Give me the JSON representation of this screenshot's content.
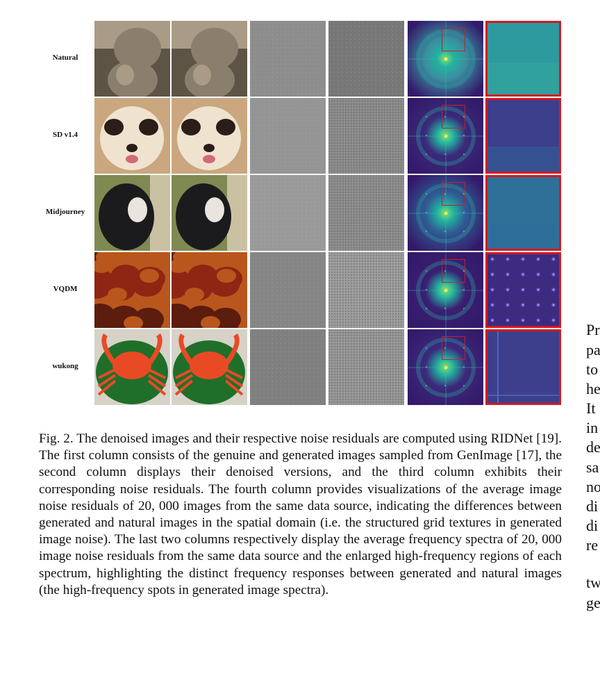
{
  "figure": {
    "row_labels": [
      "Natural",
      "SD v1.4",
      "Midjourney",
      "VQDM",
      "wukong"
    ],
    "rows": [
      {
        "subject": "monkey",
        "palette": [
          "#8a7f6c",
          "#5e5445",
          "#a99b86"
        ],
        "residual": "#8d8d8d",
        "avg": "#777777",
        "spec_bg": "#3a8fa0",
        "enl": "#2c9a9e"
      },
      {
        "subject": "dog",
        "palette": [
          "#efe3cf",
          "#caa77e",
          "#2b1d18"
        ],
        "residual": "#959595",
        "avg": "#8a8a8a",
        "spec_bg": "#3b2a7a",
        "enl": "#3b3f8c"
      },
      {
        "subject": "ape",
        "palette": [
          "#1b1b1e",
          "#7f8a52",
          "#c9c1a2"
        ],
        "residual": "#9a9a9a",
        "avg": "#8b8b8b",
        "spec_bg": "#2f5c94",
        "enl": "#2e7098"
      },
      {
        "subject": "fruit",
        "palette": [
          "#8e2613",
          "#b8561d",
          "#5c1c0e"
        ],
        "residual": "#858585",
        "avg": "#9b9b9b",
        "spec_bg": "#3a1f72",
        "enl": "#3c2b7f"
      },
      {
        "subject": "crab",
        "palette": [
          "#e84a26",
          "#1f6f2a",
          "#d6d2c8"
        ],
        "residual": "#7f7f7f",
        "avg": "#959595",
        "spec_bg": "#3c2a7c",
        "enl": "#3d3f8c"
      }
    ]
  },
  "caption": "Fig. 2.  The denoised images and their respective noise residuals are computed using RIDNet [19]. The first column consists of the genuine and generated images sampled from GenImage [17], the second column displays their denoised versions, and the third column exhibits their corresponding noise residuals. The fourth column provides visualizations of the average image noise residuals of 20, 000 images from the same data source, indicating the differences between generated and natural images in the spatial domain (i.e. the structured grid textures in generated image noise). The last two columns respectively display the average frequency spectra of 20, 000 image noise residuals from the same data source and the enlarged high-frequency regions of each spectrum, highlighting the distinct frequency responses between generated and natural images (the high-frequency spots in generated image spectra).",
  "right_column_fragments": [
    "Pr",
    "pa",
    "to",
    "he",
    "It",
    "in",
    "de",
    "sa",
    "no",
    "di",
    "di",
    "re",
    "tw",
    "ge"
  ]
}
